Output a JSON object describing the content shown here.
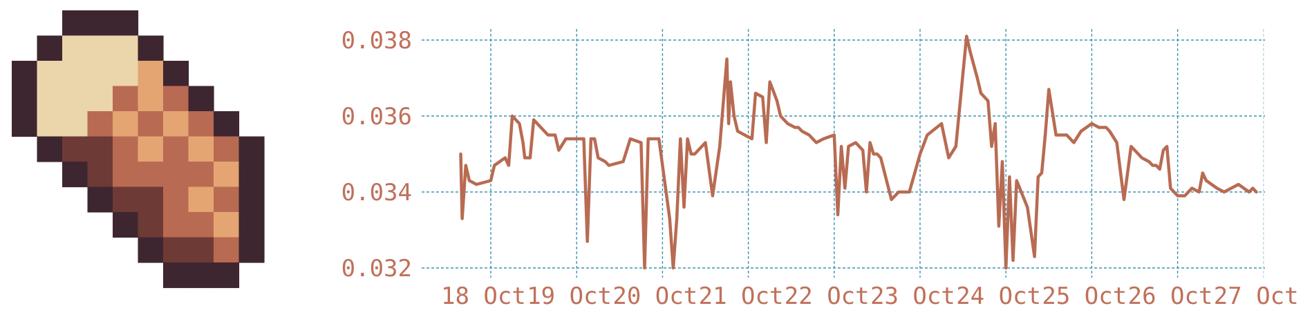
{
  "colors": {
    "line": "#b86b52",
    "grid": "#3b93b4",
    "tick_text": "#c0705a",
    "icon_outline": "#3e2630",
    "icon_cream": "#ebd5ab",
    "icon_mid": "#b86b52",
    "icon_light": "#e4a572",
    "icon_dark": "#6e3a36"
  },
  "icon": {
    "name": "pixel-potato-icon"
  },
  "chart_data": {
    "type": "line",
    "title": "",
    "xlabel": "",
    "ylabel": "",
    "x_ticks": [
      "18 Oct",
      "19 Oct",
      "20 Oct",
      "21 Oct",
      "22 Oct",
      "23 Oct",
      "24 Oct",
      "25 Oct",
      "26 Oct",
      "27 Oct"
    ],
    "y_ticks": [
      "0.032",
      "0.034",
      "0.036",
      "0.038"
    ],
    "ylim": [
      0.032,
      0.038
    ],
    "xlim": [
      "2023-10-17T15:00",
      "2023-10-27T01:00"
    ],
    "grid": true,
    "series": [
      {
        "x": [
          "2023-10-17T15:36",
          "2023-10-17T16:00",
          "2023-10-17T17:00",
          "2023-10-17T17:30",
          "2023-10-17T18:00",
          "2023-10-17T20:00",
          "2023-10-18T00:00",
          "2023-10-18T01:00",
          "2023-10-18T04:00",
          "2023-10-18T05:00",
          "2023-10-18T06:00",
          "2023-10-18T08:00",
          "2023-10-18T09:00",
          "2023-10-18T09:30",
          "2023-10-18T11:00",
          "2023-10-18T12:00",
          "2023-10-18T14:00",
          "2023-10-18T15:00",
          "2023-10-18T16:00",
          "2023-10-18T18:00",
          "2023-10-18T19:00",
          "2023-10-18T21:00",
          "2023-10-19T02:00",
          "2023-10-19T03:00",
          "2023-10-19T04:00",
          "2023-10-19T05:00",
          "2023-10-19T06:00",
          "2023-10-19T08:00",
          "2023-10-19T09:00",
          "2023-10-19T13:00",
          "2023-10-19T15:00",
          "2023-10-19T18:00",
          "2023-10-19T19:00",
          "2023-10-19T20:00",
          "2023-10-19T23:00",
          "2023-10-20T02:00",
          "2023-10-20T03:00",
          "2023-10-20T04:00",
          "2023-10-20T05:00",
          "2023-10-20T06:00",
          "2023-10-20T07:00",
          "2023-10-20T08:00",
          "2023-10-20T09:00",
          "2023-10-20T12:00",
          "2023-10-20T14:00",
          "2023-10-20T16:00",
          "2023-10-20T18:00",
          "2023-10-20T18:30",
          "2023-10-20T19:00",
          "2023-10-20T20:00",
          "2023-10-20T21:00",
          "2023-10-21T01:00",
          "2023-10-21T02:00",
          "2023-10-21T04:00",
          "2023-10-21T05:00",
          "2023-10-21T06:00",
          "2023-10-21T08:00",
          "2023-10-21T09:00",
          "2023-10-21T10:00",
          "2023-10-21T11:00",
          "2023-10-21T13:00",
          "2023-10-21T14:00",
          "2023-10-21T15:00",
          "2023-10-21T17:00",
          "2023-10-21T19:00",
          "2023-10-21T21:00",
          "2023-10-22T00:00",
          "2023-10-22T01:00",
          "2023-10-22T02:00",
          "2023-10-22T03:00",
          "2023-10-22T04:00",
          "2023-10-22T06:00",
          "2023-10-22T08:00",
          "2023-10-22T09:00",
          "2023-10-22T10:00",
          "2023-10-22T11:00",
          "2023-10-22T12:00",
          "2023-10-22T13:00",
          "2023-10-22T16:00",
          "2023-10-22T18:00",
          "2023-10-22T21:00",
          "2023-10-23T00:00",
          "2023-10-23T02:00",
          "2023-10-23T06:00",
          "2023-10-23T08:00",
          "2023-10-23T10:00",
          "2023-10-23T13:00",
          "2023-10-23T14:00",
          "2023-10-23T16:00",
          "2023-10-23T17:00",
          "2023-10-23T19:00",
          "2023-10-23T20:00",
          "2023-10-23T21:00",
          "2023-10-23T22:00",
          "2023-10-23T23:00",
          "2023-10-24T00:00",
          "2023-10-24T01:00",
          "2023-10-24T02:00",
          "2023-10-24T03:00",
          "2023-10-24T06:00",
          "2023-10-24T08:00",
          "2023-10-24T09:00",
          "2023-10-24T10:00",
          "2023-10-24T11:00",
          "2023-10-24T12:00",
          "2023-10-24T14:00",
          "2023-10-24T17:00",
          "2023-10-24T19:00",
          "2023-10-24T21:00",
          "2023-10-25T00:00",
          "2023-10-25T02:00",
          "2023-10-25T04:00",
          "2023-10-25T05:00",
          "2023-10-25T07:00",
          "2023-10-25T09:00",
          "2023-10-25T11:00",
          "2023-10-25T13:00",
          "2023-10-25T14:00",
          "2023-10-25T16:00",
          "2023-10-25T17:00",
          "2023-10-25T18:00",
          "2023-10-25T19:00",
          "2023-10-25T20:00",
          "2023-10-25T21:00",
          "2023-10-25T22:00",
          "2023-10-26T00:00",
          "2023-10-26T02:00",
          "2023-10-26T04:00",
          "2023-10-26T06:00",
          "2023-10-26T07:00",
          "2023-10-26T08:00",
          "2023-10-26T11:00",
          "2023-10-26T13:00",
          "2023-10-26T15:00",
          "2023-10-26T17:00",
          "2023-10-26T20:00",
          "2023-10-26T21:00",
          "2023-10-26T22:00"
        ],
        "values": [
          0.035,
          0.0333,
          0.0347,
          0.0345,
          0.0343,
          0.0342,
          0.0343,
          0.0347,
          0.0349,
          0.0347,
          0.036,
          0.0358,
          0.0353,
          0.0349,
          0.0349,
          0.0359,
          0.0357,
          0.0356,
          0.0355,
          0.0355,
          0.0351,
          0.0354,
          0.0354,
          0.0327,
          0.0354,
          0.0354,
          0.0349,
          0.0348,
          0.0347,
          0.0348,
          0.0354,
          0.0353,
          0.032,
          0.0354,
          0.0354,
          0.0333,
          0.032,
          0.0333,
          0.0354,
          0.0336,
          0.0354,
          0.035,
          0.035,
          0.0353,
          0.0339,
          0.0352,
          0.0375,
          0.0358,
          0.0369,
          0.036,
          0.0356,
          0.0354,
          0.0366,
          0.0365,
          0.0353,
          0.0369,
          0.0364,
          0.036,
          0.0359,
          0.0358,
          0.0357,
          0.0357,
          0.0356,
          0.0355,
          0.0353,
          0.0354,
          0.0355,
          0.0334,
          0.0352,
          0.0341,
          0.0352,
          0.0353,
          0.0351,
          0.034,
          0.0353,
          0.035,
          0.035,
          0.0349,
          0.0338,
          0.034,
          0.034,
          0.035,
          0.0355,
          0.0358,
          0.0349,
          0.0352,
          0.0381,
          0.0377,
          0.037,
          0.0366,
          0.0364,
          0.0352,
          0.0358,
          0.0331,
          0.0348,
          0.032,
          0.0344,
          0.0322,
          0.0343,
          0.0336,
          0.0323,
          0.0344,
          0.0345,
          0.0355,
          0.0367,
          0.0355,
          0.0355,
          0.0353,
          0.0356,
          0.0358,
          0.0357,
          0.0357,
          0.0356,
          0.0353,
          0.0338,
          0.0352,
          0.035,
          0.0349,
          0.0348,
          0.0347,
          0.0347,
          0.0346,
          0.0351,
          0.0352,
          0.0341,
          0.0339,
          0.0339,
          0.0341,
          0.034,
          0.0345,
          0.0343,
          0.0341,
          0.034,
          0.0341,
          0.0342,
          0.034,
          0.0341,
          0.034
        ]
      }
    ]
  }
}
